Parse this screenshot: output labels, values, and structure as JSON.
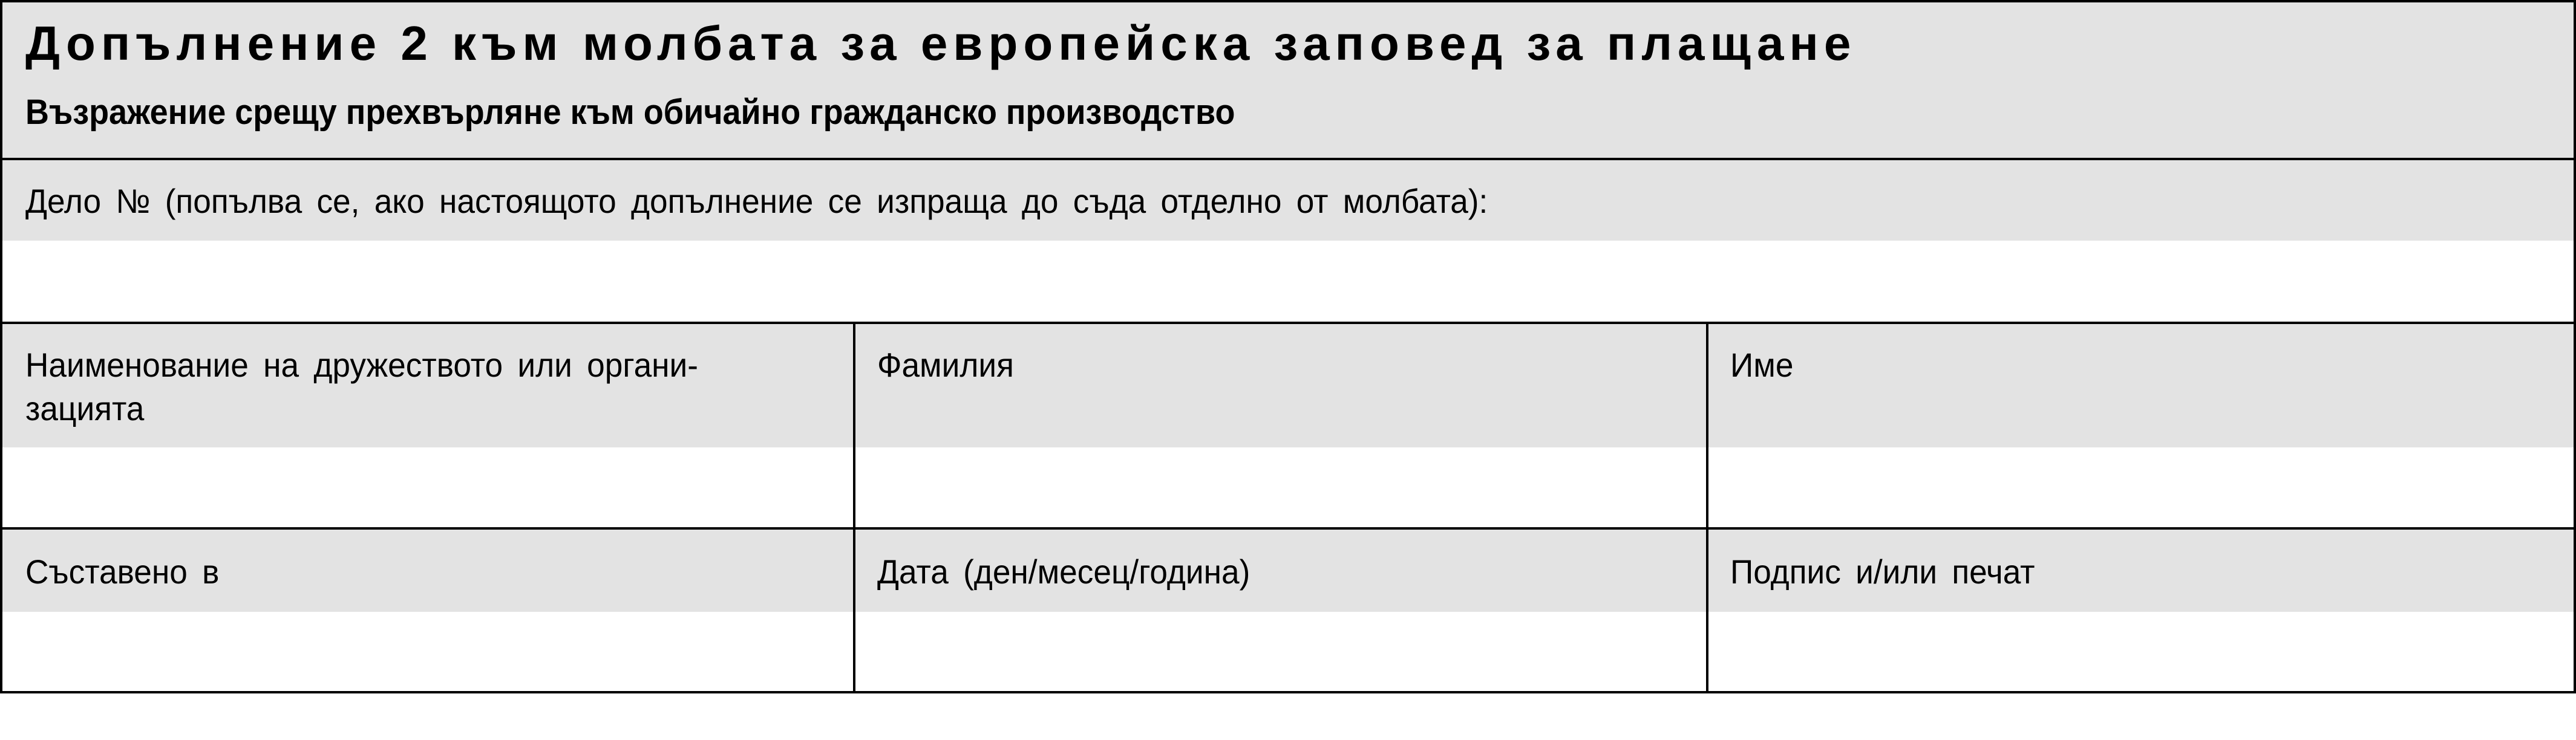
{
  "header": {
    "title": "Допълнение 2 към молбата за европейска заповед за плащане",
    "subtitle": "Възражение срещу прехвърляне към обичайно гражданско производство"
  },
  "case_number": {
    "label": "Дело № (попълва се, ако настоящото допълнение се изпраща до съда отделно от молбата):",
    "value": ""
  },
  "rows": [
    [
      {
        "label": "Наименование на дружеството или органи-",
        "label2": "зацията",
        "value": ""
      },
      {
        "label": "Фамилия",
        "value": ""
      },
      {
        "label": "Име",
        "value": ""
      }
    ],
    [
      {
        "label": "Съставено в",
        "value": ""
      },
      {
        "label": "Дата (ден/месец/година)",
        "value": ""
      },
      {
        "label": "Подпис и/или печат",
        "value": ""
      }
    ]
  ],
  "colors": {
    "label_background": "#e3e3e3",
    "border": "#000000"
  }
}
